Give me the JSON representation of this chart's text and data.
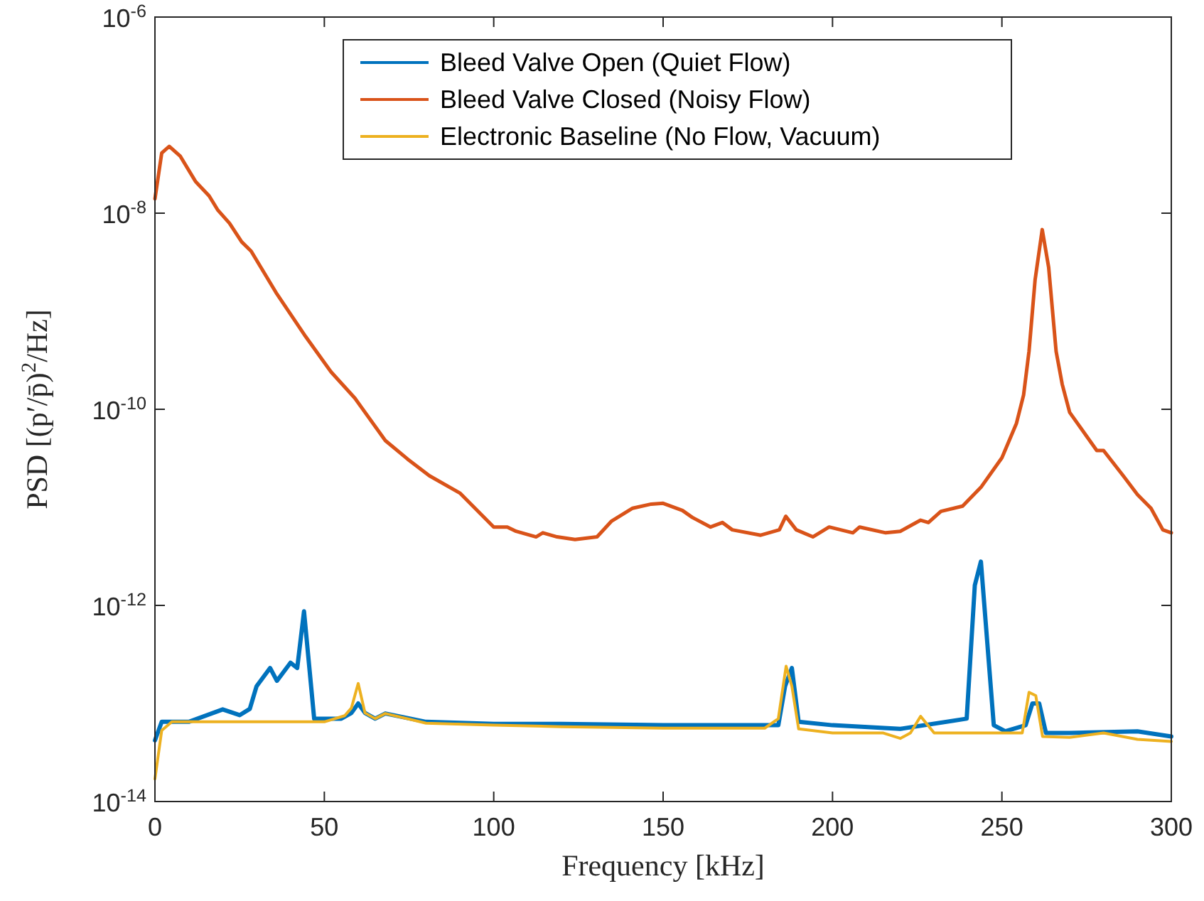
{
  "chart_data": {
    "type": "line",
    "xlabel": "Frequency [kHz]",
    "ylabel": "PSD [(p′/p̄)$^{2}$/Hz]",
    "xlim": [
      0,
      300
    ],
    "xticks": [
      0,
      50,
      100,
      150,
      200,
      250,
      300
    ],
    "ylim": [
      1e-14,
      1e-06
    ],
    "log": "y",
    "yticks": [
      {
        "value": 1e-14,
        "label": "10$^{-14}$"
      },
      {
        "value": 1e-12,
        "label": "10$^{-12}$"
      },
      {
        "value": 1e-10,
        "label": "10$^{-10}$"
      },
      {
        "value": 1e-08,
        "label": "10$^{-8}$"
      },
      {
        "value": 1e-06,
        "label": "10$^{-6}$"
      }
    ],
    "legend": "top",
    "grid": false,
    "line_style": "solid",
    "series": [
      {
        "name": "Bleed Valve Open (Quiet Flow)",
        "color": "#0072bd",
        "x": [
          0,
          2,
          10,
          20,
          25,
          28,
          30,
          34,
          36,
          40,
          42,
          44,
          47,
          55,
          58,
          60,
          62,
          65,
          68,
          80,
          100,
          120,
          150,
          180,
          184,
          186,
          188,
          190,
          200,
          220,
          239.6,
          242,
          243.8,
          247.6,
          251,
          257,
          259,
          261,
          263,
          270,
          290,
          300
        ],
        "values": [
          4.2e-14,
          6.5e-14,
          6.5e-14,
          8.7e-14,
          7.6e-14,
          8.8e-14,
          1.5e-13,
          2.3e-13,
          1.7e-13,
          2.6e-13,
          2.3e-13,
          8.7e-13,
          7e-14,
          7e-14,
          8e-14,
          1e-13,
          8e-14,
          7e-14,
          7.9e-14,
          6.5e-14,
          6.2e-14,
          6.2e-14,
          6e-14,
          6e-14,
          6e-14,
          1.5e-13,
          2.3e-13,
          6.5e-14,
          6e-14,
          5.5e-14,
          7e-14,
          1.6e-12,
          2.8e-12,
          6e-14,
          5.2e-14,
          6e-14,
          1e-13,
          1e-13,
          5e-14,
          5e-14,
          5.2e-14,
          4.6e-14
        ]
      },
      {
        "name": "Bleed Valve Closed (Noisy Flow)",
        "color": "#d95319",
        "x": [
          0,
          2,
          4.2,
          7.5,
          12,
          16,
          18.6,
          22,
          25.6,
          28.4,
          36,
          44.5,
          52,
          59,
          68,
          74.6,
          81,
          90,
          100,
          104,
          106.6,
          112.5,
          114.5,
          118.7,
          124,
          130.5,
          134.7,
          141,
          146.5,
          150,
          155.7,
          158.6,
          164,
          167.5,
          170.4,
          178.8,
          184.3,
          186.2,
          189.3,
          194.2,
          199,
          206,
          208,
          215.7,
          220,
          226,
          228.3,
          232,
          238.4,
          243.8,
          250,
          254.3,
          256.4,
          258,
          259.8,
          261.9,
          263.8,
          266,
          267.8,
          270,
          278,
          280,
          285.8,
          290,
          294,
          297.5,
          300
        ],
        "values": [
          1.4e-08,
          4.1e-08,
          4.8e-08,
          3.8e-08,
          2.1e-08,
          1.5e-08,
          1.07e-08,
          7.9e-09,
          5.1e-09,
          4.1e-09,
          1.5e-09,
          5.5e-10,
          2.4e-10,
          1.3e-10,
          4.8e-11,
          3.1e-11,
          2.1e-11,
          1.4e-11,
          6.3e-12,
          6.3e-12,
          5.7e-12,
          5e-12,
          5.5e-12,
          5e-12,
          4.7e-12,
          5e-12,
          7.2e-12,
          9.8e-12,
          1.08e-11,
          1.1e-11,
          9.3e-12,
          7.9e-12,
          6.3e-12,
          7e-12,
          5.9e-12,
          5.2e-12,
          5.9e-12,
          8.1e-12,
          5.9e-12,
          5e-12,
          6.3e-12,
          5.5e-12,
          6.3e-12,
          5.5e-12,
          5.7e-12,
          7.4e-12,
          7e-12,
          9.1e-12,
          1.03e-11,
          1.6e-11,
          3.2e-11,
          7.2e-11,
          1.4e-10,
          3.9e-10,
          2.1e-09,
          6.8e-09,
          2.8e-09,
          3.9e-10,
          1.8e-10,
          9.3e-11,
          3.8e-11,
          3.8e-11,
          2.1e-11,
          1.35e-11,
          9.8e-12,
          5.9e-12,
          5.5e-12
        ]
      },
      {
        "name": "Electronic Baseline (No Flow, Vacuum)",
        "color": "#edb120",
        "x": [
          0,
          2,
          5,
          20,
          40,
          50,
          56,
          58,
          60,
          62,
          65,
          68,
          80,
          100,
          120,
          150,
          180,
          184,
          186.3,
          188,
          190,
          200,
          215,
          220,
          223,
          226,
          230,
          240,
          250,
          256,
          258,
          260,
          262,
          270,
          280,
          290,
          300
        ],
        "values": [
          1.7e-14,
          5.3e-14,
          6.5e-14,
          6.5e-14,
          6.5e-14,
          6.5e-14,
          7.5e-14,
          9e-14,
          1.6e-13,
          8e-14,
          7e-14,
          7.9e-14,
          6.3e-14,
          6e-14,
          5.8e-14,
          5.6e-14,
          5.6e-14,
          7e-14,
          2.4e-13,
          1.5e-13,
          5.5e-14,
          5e-14,
          5e-14,
          4.4e-14,
          5e-14,
          7.4e-14,
          5e-14,
          5e-14,
          5e-14,
          5e-14,
          1.3e-13,
          1.2e-13,
          4.6e-14,
          4.5e-14,
          5e-14,
          4.3e-14,
          4.1e-14
        ]
      }
    ]
  }
}
